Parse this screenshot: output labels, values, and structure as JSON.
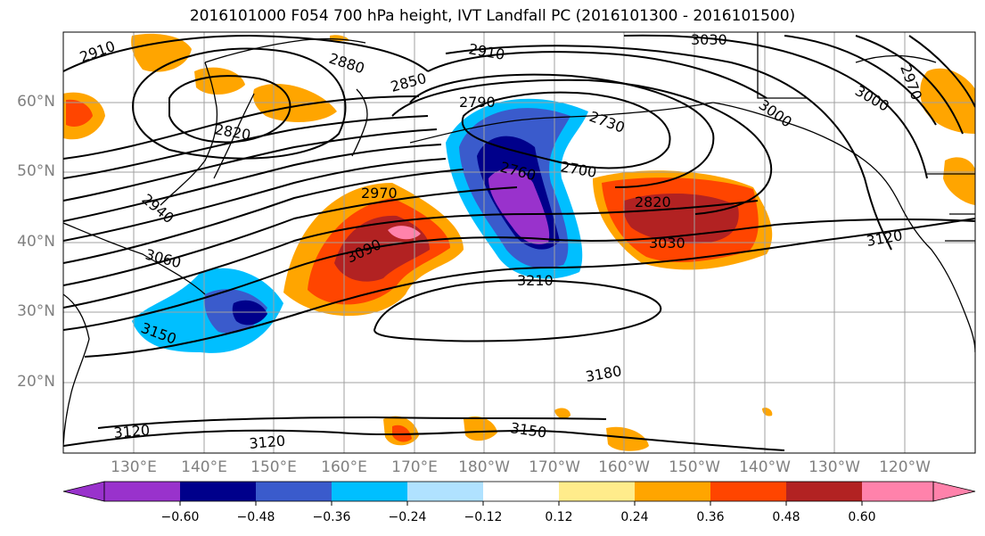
{
  "title": "2016101000 F054 700 hPa height, IVT Landfall PC (2016101300 - 2016101500)",
  "map": {
    "lat_labels": [
      "60°N",
      "50°N",
      "40°N",
      "30°N",
      "20°N"
    ],
    "lon_labels": [
      "130°E",
      "140°E",
      "150°E",
      "160°E",
      "170°E",
      "180°W",
      "170°W",
      "160°W",
      "150°W",
      "140°W",
      "130°W",
      "120°W"
    ],
    "contour_labels": [
      "2910",
      "2880",
      "2850",
      "2820",
      "2910",
      "3030",
      "2970",
      "3000",
      "3000",
      "2790",
      "2730",
      "2760",
      "2700",
      "2970",
      "2940",
      "3060",
      "3090",
      "3210",
      "2820",
      "3030",
      "3120",
      "3150",
      "3180",
      "3120",
      "3120",
      "3150"
    ]
  },
  "colorbar": {
    "colors": [
      "#9932CC",
      "#00008B",
      "#3A5BCC",
      "#00BFFF",
      "#B0E2FF",
      "#FFFFFF",
      "#FFEC8B",
      "#FFA500",
      "#FF4500",
      "#B22222",
      "#FF82AB"
    ],
    "tick_labels": [
      "−0.60",
      "−0.48",
      "−0.36",
      "−0.24",
      "−0.12",
      "0.12",
      "0.24",
      "0.36",
      "0.48",
      "0.60"
    ]
  }
}
